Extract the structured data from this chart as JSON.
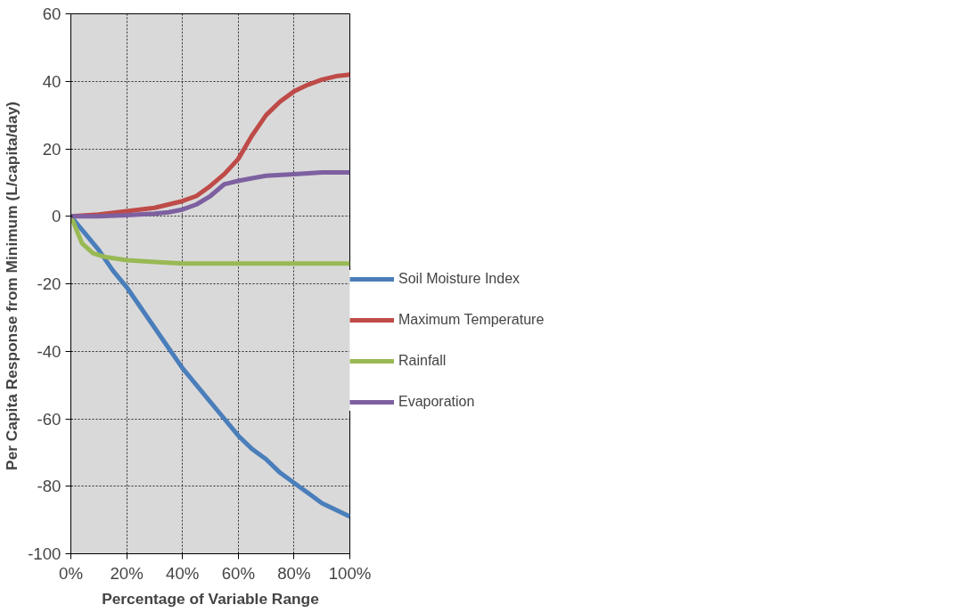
{
  "chart_data": {
    "type": "line",
    "xlabel": "Percentage of Variable Range",
    "ylabel": "Per  Capita Response from Minimum (L/capita/day)",
    "xlim": [
      0,
      100
    ],
    "ylim": [
      -100,
      60
    ],
    "xticks": [
      {
        "value": 0,
        "label": "0%"
      },
      {
        "value": 20,
        "label": "20%"
      },
      {
        "value": 40,
        "label": "40%"
      },
      {
        "value": 60,
        "label": "60%"
      },
      {
        "value": 80,
        "label": "80%"
      },
      {
        "value": 100,
        "label": "100%"
      }
    ],
    "yticks": [
      -100,
      -80,
      -60,
      -40,
      -20,
      0,
      20,
      40,
      60
    ],
    "grid": true,
    "legend": "right",
    "line_style": "solid",
    "marker": "none",
    "series": [
      {
        "name": "Soil Moisture Index",
        "color": "#4a7ebb",
        "x": [
          0,
          5,
          10,
          15,
          20,
          25,
          30,
          35,
          40,
          45,
          50,
          55,
          60,
          65,
          70,
          75,
          80,
          85,
          90,
          95,
          100
        ],
        "values": [
          0,
          -5,
          -10,
          -16,
          -21,
          -27,
          -33,
          -39,
          -45,
          -50,
          -55,
          -60,
          -65,
          -69,
          -72,
          -76,
          -79,
          -82,
          -85,
          -87,
          -89
        ]
      },
      {
        "name": "Maximum Temperature",
        "color": "#be4b48",
        "x": [
          0,
          10,
          20,
          30,
          35,
          40,
          45,
          50,
          55,
          60,
          65,
          70,
          75,
          80,
          85,
          90,
          95,
          100
        ],
        "values": [
          0,
          0.5,
          1.5,
          2.5,
          3.5,
          4.5,
          6,
          9,
          12.5,
          17,
          24,
          30,
          34,
          37,
          39,
          40.5,
          41.5,
          42
        ]
      },
      {
        "name": "Rainfall",
        "color": "#98b954",
        "x": [
          0,
          2,
          4,
          8,
          12,
          20,
          30,
          40,
          50,
          60,
          80,
          100
        ],
        "values": [
          0,
          -4,
          -8,
          -11,
          -12,
          -13,
          -13.5,
          -14,
          -14,
          -14,
          -14,
          -14
        ]
      },
      {
        "name": "Evaporation",
        "color": "#7d60a0",
        "x": [
          0,
          10,
          20,
          30,
          35,
          40,
          45,
          50,
          55,
          60,
          65,
          70,
          80,
          90,
          100
        ],
        "values": [
          0,
          0,
          0.3,
          0.8,
          1.2,
          2,
          3.5,
          6,
          9.5,
          10.5,
          11.3,
          12,
          12.5,
          13,
          13
        ]
      }
    ]
  }
}
